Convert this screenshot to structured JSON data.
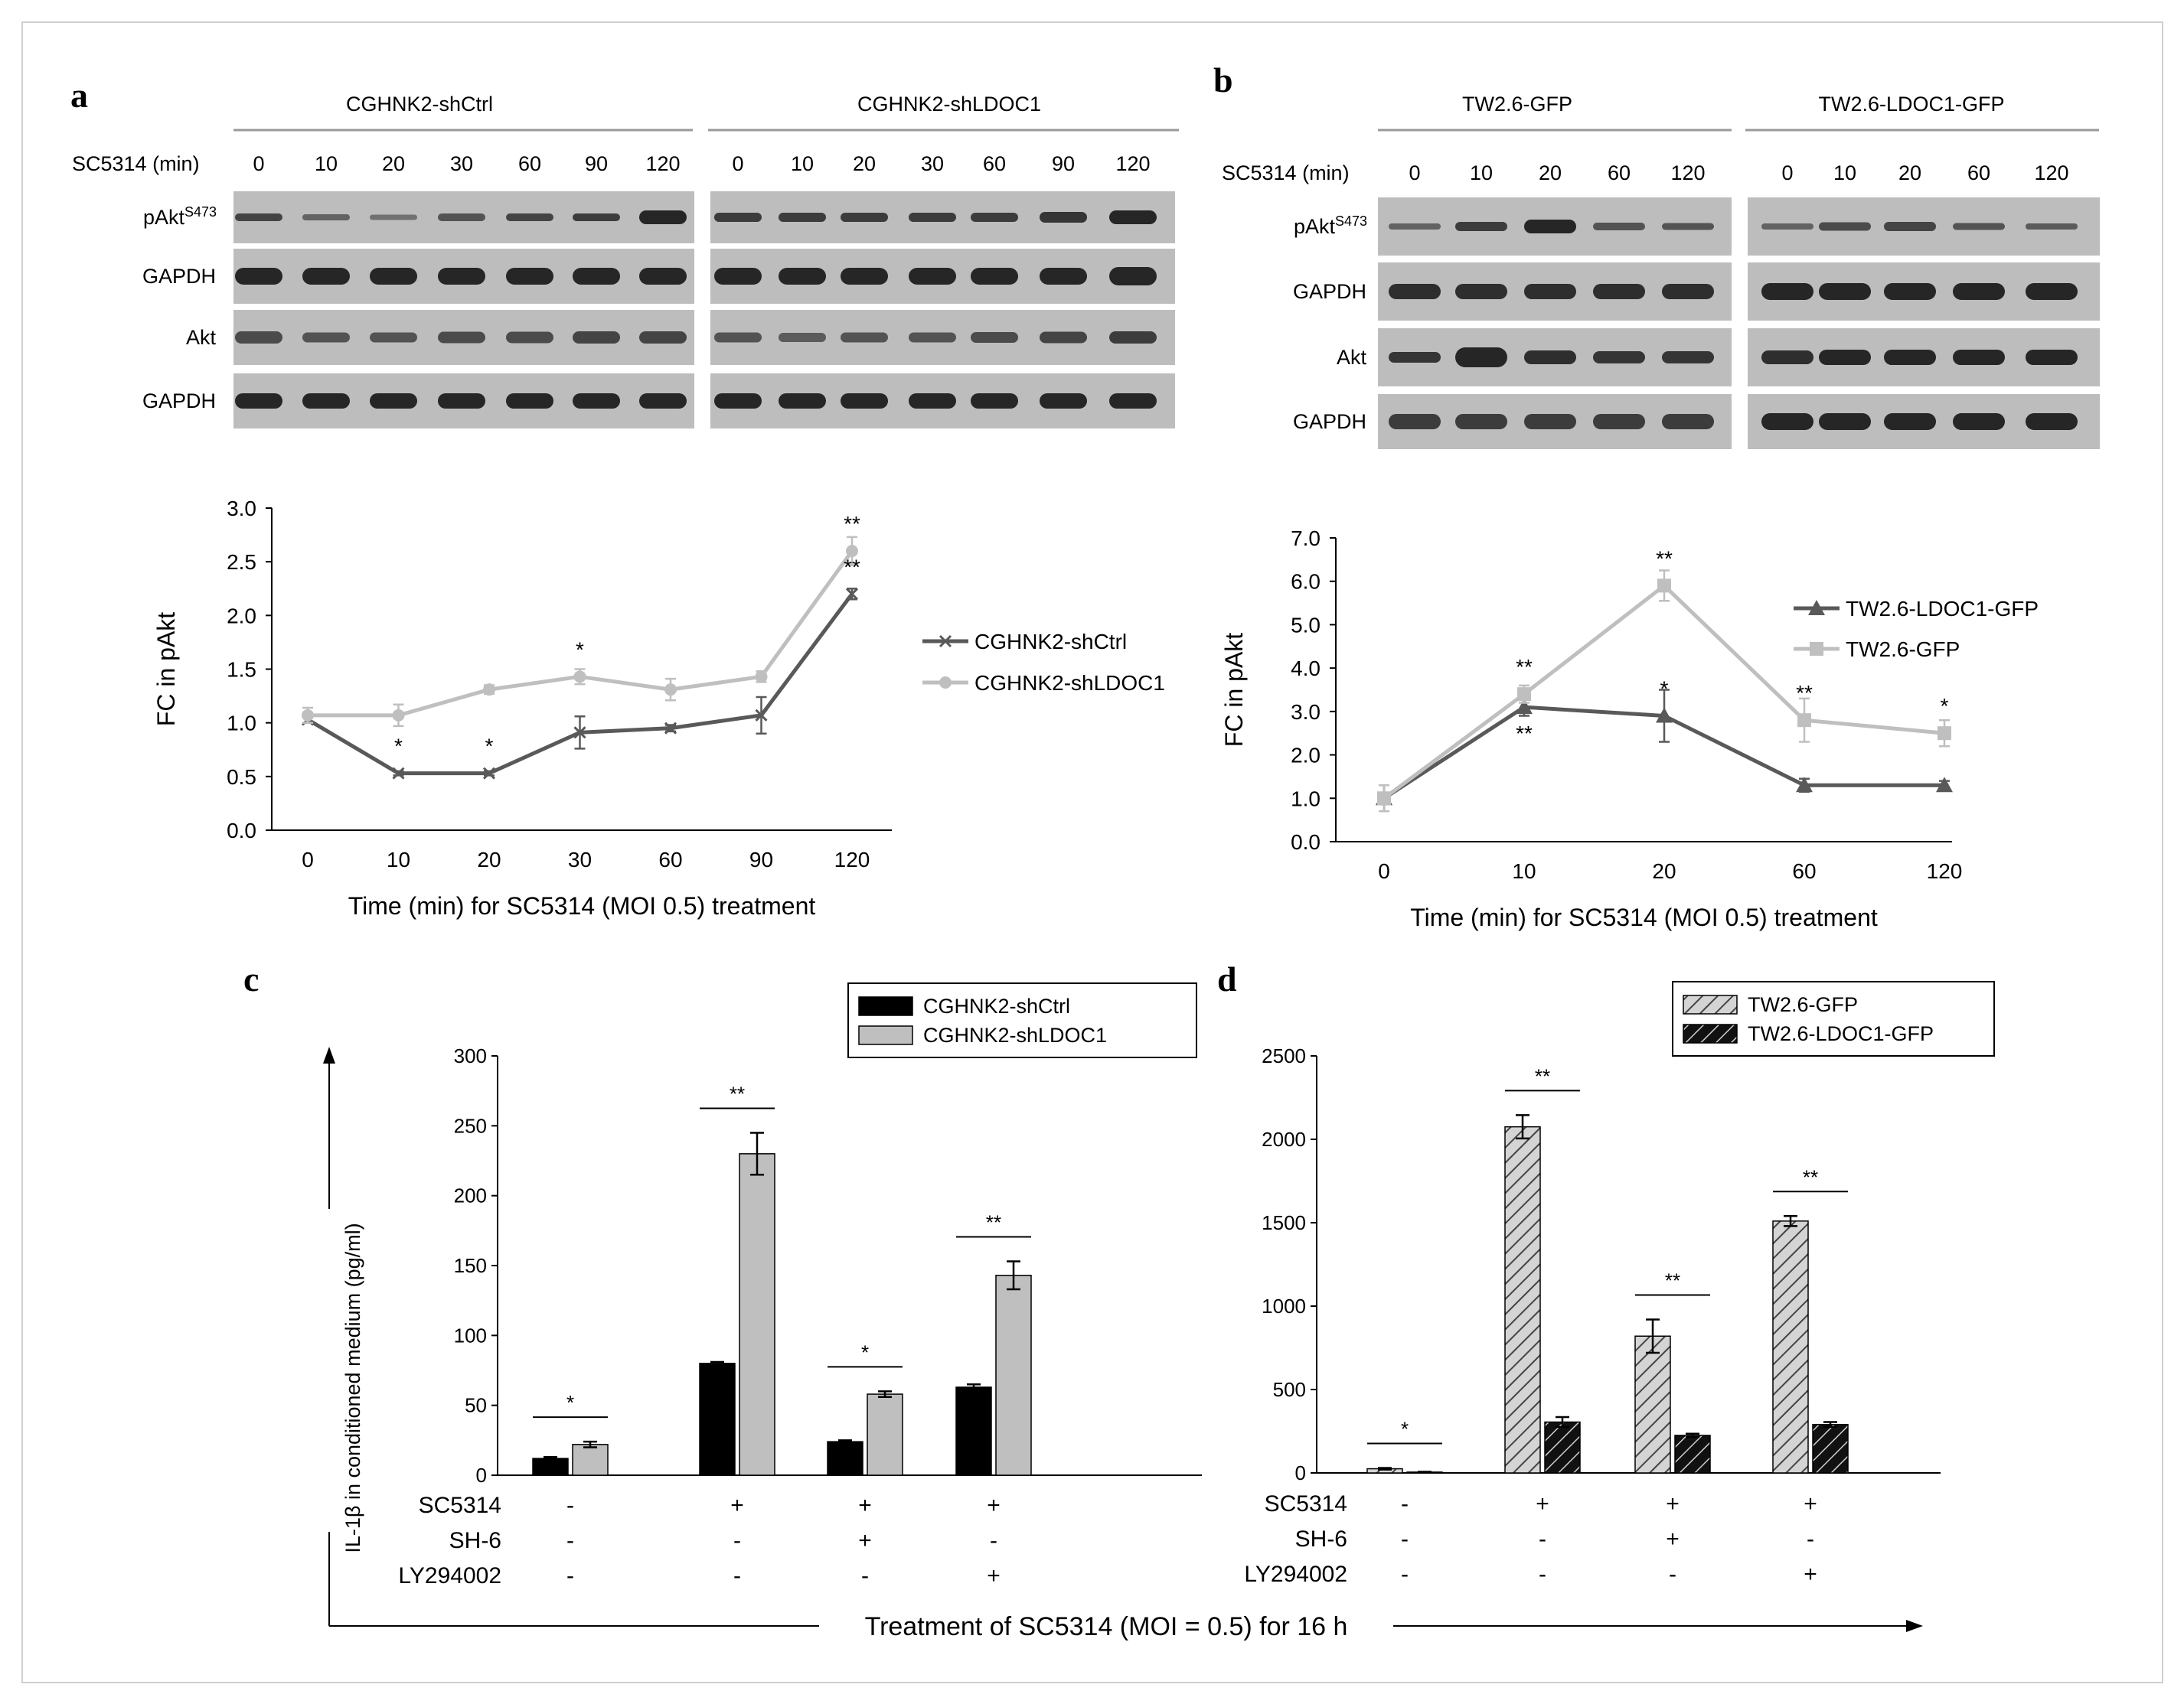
{
  "panels": {
    "a": {
      "letter": "a",
      "group_labels": [
        "CGHNK2-shCtrl",
        "CGHNK2-shLDOC1"
      ],
      "time_label": "SC5314 (min)",
      "times": [
        "0",
        "10",
        "20",
        "30",
        "60",
        "90",
        "120",
        "0",
        "10",
        "20",
        "30",
        "60",
        "90",
        "120"
      ],
      "row_labels": [
        "pAkt",
        "GAPDH",
        "Akt",
        "GAPDH"
      ],
      "row_label_sup": "S473"
    },
    "b": {
      "letter": "b",
      "group_labels": [
        "TW2.6-GFP",
        "TW2.6-LDOC1-GFP"
      ],
      "time_label": "SC5314 (min)",
      "times": [
        "0",
        "10",
        "20",
        "60",
        "120",
        "0",
        "10",
        "20",
        "60",
        "120"
      ],
      "row_labels": [
        "pAkt",
        "GAPDH",
        "Akt",
        "GAPDH"
      ],
      "row_label_sup": "S473"
    },
    "c": {
      "letter": "c",
      "treat_labels": [
        "SC5314",
        "SH-6",
        "LY294002"
      ],
      "treat_rows": [
        [
          "-",
          "+",
          "+",
          "+"
        ],
        [
          "-",
          "-",
          "+",
          "-"
        ],
        [
          "-",
          "-",
          "-",
          "+"
        ]
      ],
      "bottom_label": "Treatment of SC5314 (MOI = 0.5) for 16 h"
    },
    "d": {
      "letter": "d",
      "treat_labels": [
        "SC5314",
        "SH-6",
        "LY294002"
      ],
      "treat_rows": [
        [
          "-",
          "+",
          "+",
          "+"
        ],
        [
          "-",
          "-",
          "+",
          "-"
        ],
        [
          "-",
          "-",
          "-",
          "+"
        ]
      ]
    }
  },
  "chart_data": [
    {
      "id": "a",
      "type": "line",
      "categories": [
        "0",
        "10",
        "20",
        "30",
        "60",
        "90",
        "120"
      ],
      "series": [
        {
          "name": "CGHNK2-shCtrl",
          "values": [
            1.03,
            0.53,
            0.53,
            0.91,
            0.95,
            1.07,
            2.2
          ],
          "err": [
            0.03,
            0.02,
            0.02,
            0.15,
            0.03,
            0.17,
            0.05
          ],
          "color": "#595959",
          "marker": "x"
        },
        {
          "name": "CGHNK2-shLDOC1",
          "values": [
            1.07,
            1.07,
            1.31,
            1.43,
            1.31,
            1.43,
            2.6
          ],
          "err": [
            0.07,
            0.1,
            0.04,
            0.07,
            0.1,
            0.05,
            0.13
          ],
          "color": "#bfbfbf",
          "marker": "circle"
        }
      ],
      "annotations": [
        {
          "category": "10",
          "value": 0.53,
          "text": "*",
          "pos": "above"
        },
        {
          "category": "20",
          "value": 0.53,
          "text": "*",
          "pos": "above"
        },
        {
          "category": "30",
          "value": 1.43,
          "text": "*",
          "pos": "above"
        },
        {
          "category": "120",
          "value": 2.6,
          "text": "**",
          "pos": "above"
        },
        {
          "category": "120",
          "value": 2.2,
          "text": "**",
          "pos": "above"
        }
      ],
      "ylabel": "FC in pAkt",
      "xlabel": "Time (min) for SC5314 (MOI 0.5) treatment",
      "ylim": [
        0,
        3.0
      ],
      "yticks": [
        "0.0",
        "0.5",
        "1.0",
        "1.5",
        "2.0",
        "2.5",
        "3.0"
      ],
      "legend": "right"
    },
    {
      "id": "b",
      "type": "line",
      "categories": [
        "0",
        "10",
        "20",
        "60",
        "120"
      ],
      "series": [
        {
          "name": "TW2.6-LDOC1-GFP",
          "values": [
            1.0,
            3.1,
            2.9,
            1.3,
            1.3
          ],
          "err": [
            0.3,
            0.2,
            0.6,
            0.15,
            0.1
          ],
          "color": "#595959",
          "marker": "triangle"
        },
        {
          "name": "TW2.6-GFP",
          "values": [
            1.0,
            3.4,
            5.9,
            2.8,
            2.5
          ],
          "err": [
            0.3,
            0.2,
            0.35,
            0.5,
            0.3
          ],
          "color": "#bfbfbf",
          "marker": "square"
        }
      ],
      "annotations": [
        {
          "category": "10",
          "value": 3.4,
          "text": "**",
          "pos": "above"
        },
        {
          "category": "10",
          "value": 3.1,
          "text": "**",
          "pos": "below"
        },
        {
          "category": "20",
          "value": 5.9,
          "text": "**",
          "pos": "above"
        },
        {
          "category": "20",
          "value": 2.9,
          "text": "*",
          "pos": "above"
        },
        {
          "category": "60",
          "value": 2.8,
          "text": "**",
          "pos": "above"
        },
        {
          "category": "120",
          "value": 2.5,
          "text": "*",
          "pos": "above"
        }
      ],
      "ylabel": "FC in pAkt",
      "xlabel": "Time (min) for SC5314 (MOI 0.5)  treatment",
      "ylim": [
        0,
        7.0
      ],
      "yticks": [
        "0.0",
        "1.0",
        "2.0",
        "3.0",
        "4.0",
        "5.0",
        "6.0",
        "7.0"
      ],
      "legend": "top-right"
    },
    {
      "id": "c",
      "type": "bar",
      "groups": 4,
      "series": [
        {
          "name": "CGHNK2-shCtrl",
          "values": [
            12,
            80,
            24,
            63
          ],
          "err": [
            1,
            1,
            1,
            2
          ],
          "color": "#000000"
        },
        {
          "name": "CGHNK2-shLDOC1",
          "values": [
            22,
            230,
            58,
            143
          ],
          "err": [
            2,
            15,
            2,
            10
          ],
          "color": "#bfbfbf"
        }
      ],
      "significance": [
        "*",
        "**",
        "*",
        "**"
      ],
      "ylabel": "IL-1β in conditioned medium (pg/ml)",
      "ylim": [
        0,
        300
      ],
      "yticks": [
        "0",
        "50",
        "100",
        "150",
        "200",
        "250",
        "300"
      ],
      "legend": "top-right"
    },
    {
      "id": "d",
      "type": "bar",
      "groups": 4,
      "series": [
        {
          "name": "TW2.6-GFP",
          "values": [
            25,
            2075,
            820,
            1510
          ],
          "err": [
            5,
            70,
            100,
            30
          ],
          "color": "#c8c8c8",
          "pattern": "light-hatch"
        },
        {
          "name": "TW2.6-LDOC1-GFP",
          "values": [
            5,
            305,
            225,
            290
          ],
          "err": [
            2,
            30,
            10,
            15
          ],
          "color": "#1a1a1a",
          "pattern": "dark-hatch"
        }
      ],
      "significance": [
        "*",
        "**",
        "**",
        "**"
      ],
      "ylim": [
        0,
        2500
      ],
      "yticks": [
        "0",
        "500",
        "1000",
        "1500",
        "2000",
        "2500"
      ],
      "legend": "top"
    }
  ]
}
